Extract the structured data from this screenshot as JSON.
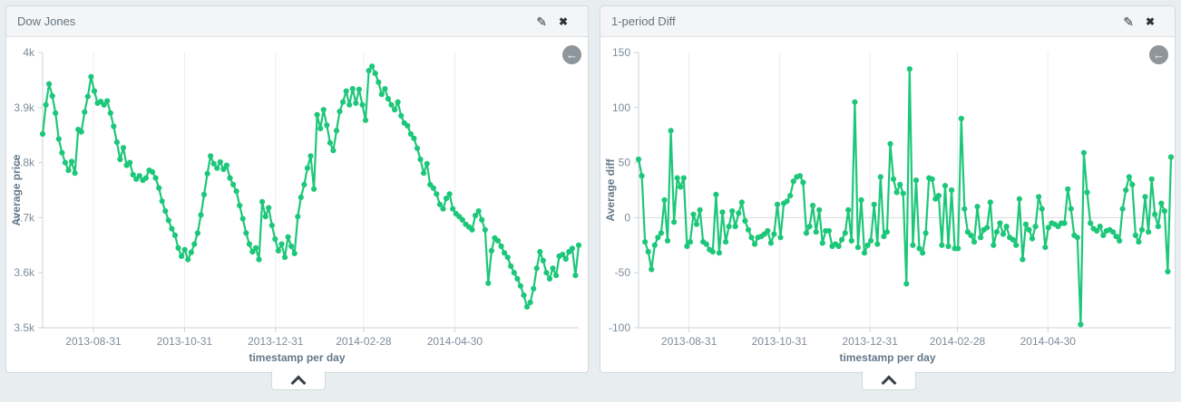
{
  "page": {
    "background_color": "#e8edef"
  },
  "colors": {
    "series_green": "#1dc779",
    "axis_text": "#7d8c9b",
    "axis_title_text": "#64788a",
    "axis_line": "#cdd3d8",
    "gridline": "#ececec",
    "zero_line": "#d9d9d9",
    "panel_border": "#d4d9dd",
    "header_bg": "#f4f5f6",
    "page_bg": "#e8edef",
    "title_text": "#64747f",
    "icon_dark": "#2f3338",
    "back_circle": "#8e959b"
  },
  "icons": {
    "edit": "✎",
    "close": "✖",
    "back": "←"
  },
  "panels": [
    {
      "title": "Dow Jones"
    },
    {
      "title": "1-period Diff"
    }
  ],
  "chart_data": [
    {
      "type": "line",
      "title": "Dow Jones",
      "ylabel": "Average price",
      "xlabel": "timestamp per day",
      "legend": "none",
      "grid": "vertical gridlines at x ticks only",
      "marker": "circle",
      "line_color": "#1dc779",
      "x_start": "2013-07-28",
      "x_end": "2014-07-22",
      "x_ticks": [
        "2013-08-31",
        "2013-10-31",
        "2013-12-31",
        "2014-02-28",
        "2014-04-30"
      ],
      "ylim": [
        3500,
        4000
      ],
      "y_ticks": [
        3500,
        3600,
        3700,
        3800,
        3900,
        4000
      ],
      "y_tick_labels": [
        "3.5k",
        "3.6k",
        "3.7k",
        "3.8k",
        "3.9k",
        "4k"
      ],
      "values": [
        3852,
        3905,
        3943,
        3921,
        3890,
        3843,
        3818,
        3800,
        3786,
        3802,
        3781,
        3860,
        3856,
        3892,
        3920,
        3956,
        3930,
        3908,
        3911,
        3905,
        3912,
        3890,
        3866,
        3837,
        3806,
        3827,
        3795,
        3800,
        3778,
        3770,
        3776,
        3768,
        3772,
        3786,
        3783,
        3772,
        3754,
        3730,
        3712,
        3695,
        3680,
        3668,
        3645,
        3630,
        3642,
        3624,
        3637,
        3652,
        3672,
        3705,
        3742,
        3780,
        3812,
        3798,
        3790,
        3801,
        3788,
        3795,
        3772,
        3760,
        3748,
        3722,
        3698,
        3672,
        3652,
        3638,
        3645,
        3624,
        3729,
        3702,
        3718,
        3686,
        3661,
        3640,
        3652,
        3628,
        3665,
        3648,
        3635,
        3702,
        3737,
        3760,
        3790,
        3812,
        3752,
        3887,
        3862,
        3896,
        3868,
        3836,
        3822,
        3858,
        3893,
        3910,
        3930,
        3905,
        3934,
        3908,
        3933,
        3905,
        3877,
        3967,
        3975,
        3962,
        3946,
        3924,
        3934,
        3916,
        3905,
        3896,
        3910,
        3885,
        3872,
        3867,
        3852,
        3844,
        3826,
        3806,
        3781,
        3798,
        3760,
        3754,
        3743,
        3724,
        3716,
        3735,
        3743,
        3716,
        3707,
        3702,
        3696,
        3688,
        3683,
        3678,
        3704,
        3712,
        3696,
        3678,
        3581,
        3640,
        3663,
        3658,
        3648,
        3636,
        3628,
        3612,
        3600,
        3589,
        3576,
        3559,
        3538,
        3546,
        3571,
        3608,
        3638,
        3622,
        3600,
        3589,
        3608,
        3595,
        3630,
        3633,
        3625,
        3638,
        3644,
        3595,
        3650
      ]
    },
    {
      "type": "line",
      "title": "1-period Diff",
      "ylabel": "Average diff",
      "xlabel": "timestamp per day",
      "legend": "none",
      "grid": "vertical gridlines at x ticks, horizontal line at zero",
      "marker": "circle",
      "line_color": "#1dc779",
      "derived_from": "1-period difference of the Dow Jones average-price series",
      "x_start": "2013-07-28",
      "x_end": "2014-07-22",
      "x_ticks": [
        "2013-08-31",
        "2013-10-31",
        "2013-12-31",
        "2014-02-28",
        "2014-04-30"
      ],
      "ylim": [
        -100,
        150
      ],
      "y_ticks": [
        -100,
        -50,
        0,
        50,
        100,
        150
      ],
      "y_tick_labels": [
        "-100",
        "-50",
        "0",
        "50",
        "100",
        "150"
      ],
      "zero_line": true,
      "values": [
        53,
        38,
        -22,
        -31,
        -47,
        -25,
        -18,
        -14,
        16,
        -21,
        79,
        -4,
        36,
        28,
        36,
        -26,
        -22,
        3,
        -6,
        7,
        -22,
        -24,
        -29,
        -31,
        21,
        -32,
        5,
        -22,
        -8,
        6,
        -8,
        4,
        14,
        -3,
        -11,
        -18,
        -24,
        -18,
        -17,
        -15,
        -12,
        -23,
        -15,
        12,
        -18,
        13,
        15,
        20,
        33,
        37,
        38,
        32,
        -14,
        -8,
        11,
        -13,
        7,
        -23,
        -12,
        -12,
        -26,
        -24,
        -26,
        -20,
        -14,
        7,
        -21,
        105,
        -27,
        16,
        -32,
        -25,
        -21,
        12,
        -24,
        37,
        -17,
        -13,
        67,
        35,
        23,
        30,
        22,
        -60,
        135,
        -25,
        34,
        -28,
        -32,
        -14,
        36,
        35,
        17,
        20,
        -25,
        29,
        -26,
        25,
        -28,
        -28,
        90,
        8,
        -13,
        -16,
        -22,
        10,
        -18,
        -11,
        -9,
        14,
        -25,
        -13,
        -5,
        -15,
        -8,
        -18,
        -20,
        -25,
        17,
        -38,
        -6,
        -11,
        -19,
        -8,
        19,
        8,
        -27,
        -9,
        -5,
        -6,
        -8,
        -5,
        -5,
        26,
        8,
        -16,
        -18,
        -97,
        59,
        23,
        -5,
        -10,
        -12,
        -8,
        -16,
        -12,
        -11,
        -13,
        -17,
        -21,
        8,
        25,
        37,
        30,
        -16,
        -22,
        -11,
        19,
        -13,
        35,
        3,
        -8,
        13,
        6,
        -49,
        55
      ]
    }
  ]
}
